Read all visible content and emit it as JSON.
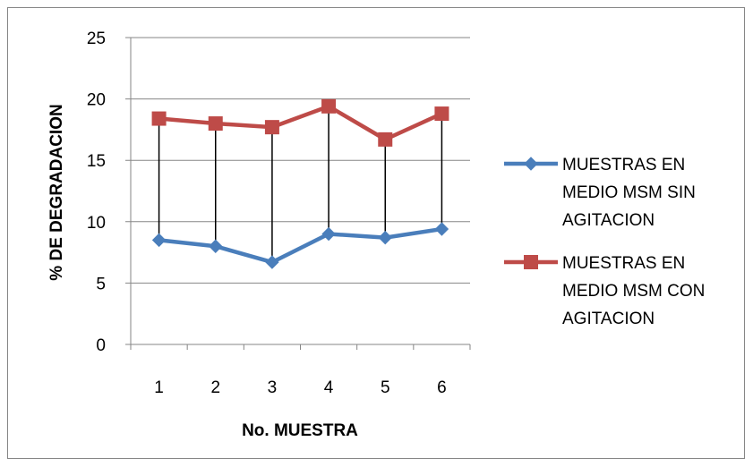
{
  "chart_data": {
    "type": "line",
    "title": "",
    "xlabel": "No. MUESTRA",
    "ylabel": "% DE DEGRADACION",
    "ylim": [
      0,
      25
    ],
    "yticks": [
      0,
      5,
      10,
      15,
      20,
      25
    ],
    "categories": [
      "1",
      "2",
      "3",
      "4",
      "5",
      "6"
    ],
    "grid": true,
    "drop_lines": true,
    "legend_position": "right",
    "series": [
      {
        "name": "MUESTRAS EN MEDIO MSM SIN AGITACION",
        "legend_lines": [
          "MUESTRAS EN",
          "MEDIO MSM SIN",
          "AGITACION"
        ],
        "values": [
          8.5,
          8.0,
          6.7,
          9.0,
          8.7,
          9.4
        ],
        "color": "#4A7EBB",
        "marker": "diamond"
      },
      {
        "name": "MUESTRAS EN MEDIO MSM CON AGITACION",
        "legend_lines": [
          "MUESTRAS EN",
          "MEDIO MSM CON",
          "AGITACION"
        ],
        "values": [
          18.4,
          18.0,
          17.7,
          19.4,
          16.7,
          18.8
        ],
        "color": "#BE4B48",
        "marker": "square"
      }
    ]
  }
}
